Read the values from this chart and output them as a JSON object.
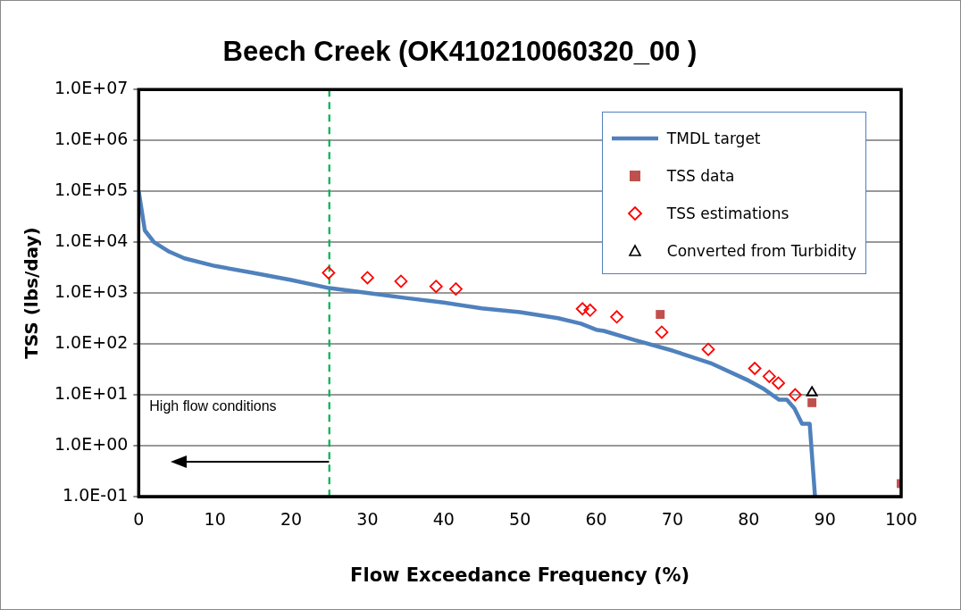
{
  "chart_data": {
    "type": "scatter",
    "title": "Beech Creek (OK410210060320_00 )",
    "xlabel": "Flow Exceedance Frequency (%)",
    "ylabel": "TSS (lbs/day)",
    "series": [
      {
        "name": "TMDL target",
        "type": "line",
        "color": "#4f81bd",
        "marker": "none",
        "x": [
          0,
          0.8,
          2,
          4,
          6,
          10,
          15,
          20,
          25,
          30,
          35,
          40,
          45,
          50,
          55,
          58,
          60,
          61,
          65,
          70,
          75,
          80,
          82,
          84,
          85,
          86,
          87,
          88,
          88.7
        ],
        "values": [
          100000,
          17000,
          10000,
          6500,
          4800,
          3400,
          2500,
          1800,
          1250,
          1000,
          800,
          650,
          500,
          420,
          320,
          250,
          190,
          180,
          120,
          74,
          42,
          19,
          13,
          8,
          8,
          5.4,
          2.7,
          2.7,
          0.1
        ]
      },
      {
        "name": "TSS data",
        "color": "#c0504d",
        "marker": "square",
        "x": [
          68.4,
          88.3,
          100
        ],
        "values": [
          380,
          7,
          0.18
        ]
      },
      {
        "name": "TSS estimations",
        "color": "#ff0000",
        "marker": "diamond",
        "x": [
          24.9,
          30,
          34.4,
          39,
          41.6,
          58.2,
          59.2,
          62.7,
          68.6,
          74.7,
          80.8,
          82.7,
          83.9,
          86.1
        ],
        "values": [
          2500,
          2000,
          1700,
          1350,
          1200,
          490,
          460,
          340,
          170,
          78,
          33,
          23,
          17,
          10
        ]
      },
      {
        "name": "Converted from Turbidity",
        "color": "#000000",
        "marker": "triangle",
        "x": [
          88.3
        ],
        "values": [
          11
        ]
      }
    ],
    "xlim": [
      0,
      100
    ],
    "xticks": [
      0,
      10,
      20,
      30,
      40,
      50,
      60,
      70,
      80,
      90,
      100
    ],
    "ylim": [
      0.1,
      10000000
    ],
    "yticks": [
      {
        "value": 0.1,
        "label": "1.0E-01"
      },
      {
        "value": 1,
        "label": "1.0E+00"
      },
      {
        "value": 10,
        "label": "1.0E+01"
      },
      {
        "value": 100,
        "label": "1.0E+02"
      },
      {
        "value": 1000,
        "label": "1.0E+03"
      },
      {
        "value": 10000,
        "label": "1.0E+04"
      },
      {
        "value": 100000,
        "label": "1.0E+05"
      },
      {
        "value": 1000000,
        "label": "1.0E+06"
      },
      {
        "value": 10000000,
        "label": "1.0E+07"
      }
    ],
    "log": "y",
    "grid": "y",
    "legend": "top right",
    "ref_lines": [
      {
        "axis": "x",
        "value": 25,
        "color": "#00b050",
        "line_style": "dashed"
      }
    ],
    "annotations": [
      "High flow conditions"
    ]
  }
}
